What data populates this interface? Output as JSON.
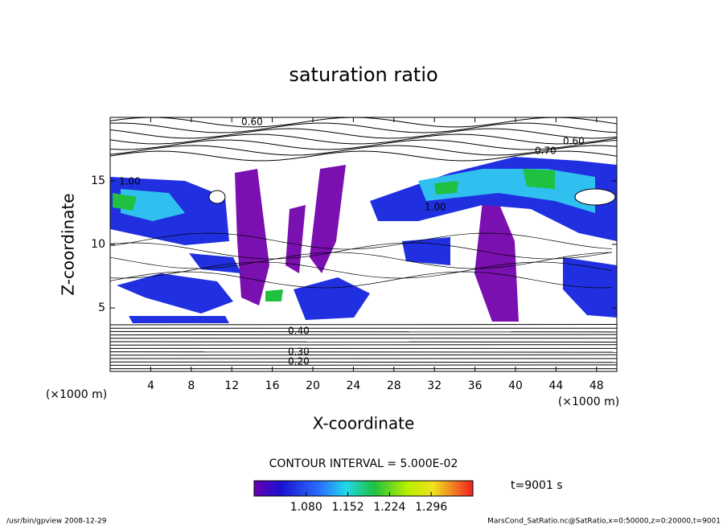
{
  "chart_data": {
    "type": "contour",
    "title": "saturation ratio",
    "x_label": "X-coordinate",
    "y_label": "Z-coordinate",
    "y_unit_label": "(×1000 m)",
    "x_unit_label": "(×1000 m)",
    "xlim": [
      0,
      50
    ],
    "xticks": [
      4,
      8,
      12,
      16,
      20,
      24,
      28,
      32,
      36,
      40,
      44,
      48
    ],
    "ylim": [
      0,
      20
    ],
    "yticks": [
      5,
      10,
      15
    ],
    "contour_interval_label": "CONTOUR INTERVAL = 5.000E-02",
    "time_label": "t=9001 s",
    "clim": [
      0.99,
      1.368
    ],
    "colorbar_ticks": [
      {
        "value": 1.08,
        "label": "1.080"
      },
      {
        "value": 1.152,
        "label": "1.152"
      },
      {
        "value": 1.224,
        "label": "1.224"
      },
      {
        "value": 1.296,
        "label": "1.296"
      }
    ],
    "contour_labels": [
      "0.60",
      "0.70",
      "0.60",
      "1.00",
      "1.00",
      "0.40",
      "0.30",
      "0.20"
    ],
    "footer_left": "/usr/bin/gpview  2008-12-29",
    "footer_right": "MarsCond_SatRatio.nc@SatRatio,x=0:50000,z=0:20000,t=9001"
  }
}
